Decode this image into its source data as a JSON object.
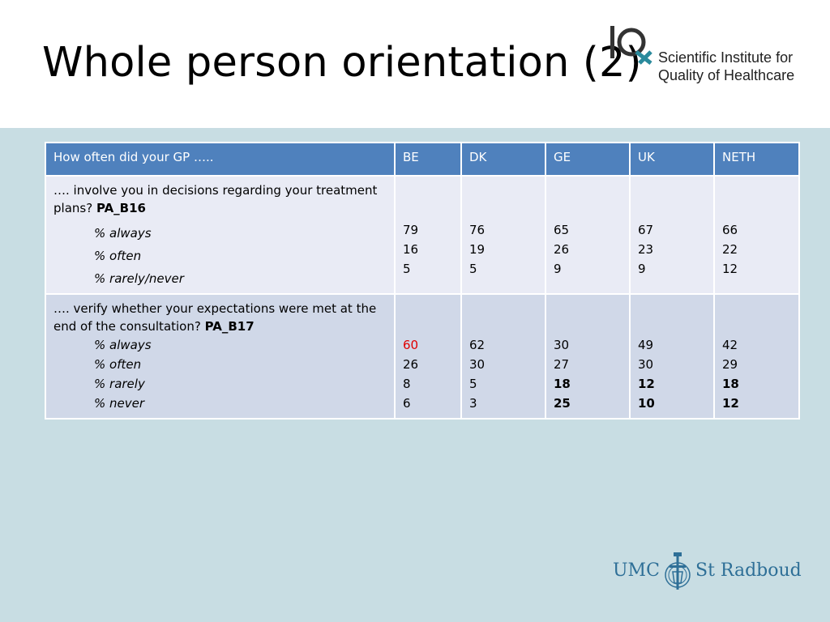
{
  "slide": {
    "title": "Whole person orientation (2)"
  },
  "iq_logo": {
    "line1": "Scientific Institute for",
    "line2": "Quality of Healthcare"
  },
  "table": {
    "headers": [
      "How often did your GP …..",
      "BE",
      "DK",
      "GE",
      "UK",
      "NETH"
    ],
    "rows": [
      {
        "question": "…. involve you in decisions regarding your treatment plans?",
        "code": "PA_B16",
        "options": [
          "% always",
          "% often",
          "% rarely/never"
        ],
        "BE": [
          "79",
          "16",
          "5"
        ],
        "DK": [
          "76",
          "19",
          "5"
        ],
        "GE": [
          "65",
          "26",
          "9"
        ],
        "UK": [
          "67",
          "23",
          "9"
        ],
        "NETH": [
          "66",
          "22",
          "12"
        ]
      },
      {
        "question": "…. verify whether your expectations were met at the end of the consultation?",
        "code": "PA_B17",
        "options": [
          "% always",
          "% often",
          "% rarely",
          "% never"
        ],
        "BE": [
          "60",
          "26",
          "8",
          "6"
        ],
        "DK": [
          "62",
          "30",
          "5",
          "3"
        ],
        "GE": [
          "30",
          "27",
          "18",
          "25"
        ],
        "UK": [
          "49",
          "30",
          "12",
          "10"
        ],
        "NETH": [
          "42",
          "29",
          "18",
          "12"
        ]
      }
    ]
  },
  "umc_logo": {
    "left": "UMC",
    "right": "St Radboud"
  },
  "colors": {
    "header_blue": "#4f81bd",
    "row_light": "#e9ebf5",
    "row_dark": "#d0d8e8",
    "background": "#c8dde3",
    "highlight_red": "#e00000",
    "umc_blue": "#2e6f97",
    "iq_teal": "#2a8a9c"
  }
}
